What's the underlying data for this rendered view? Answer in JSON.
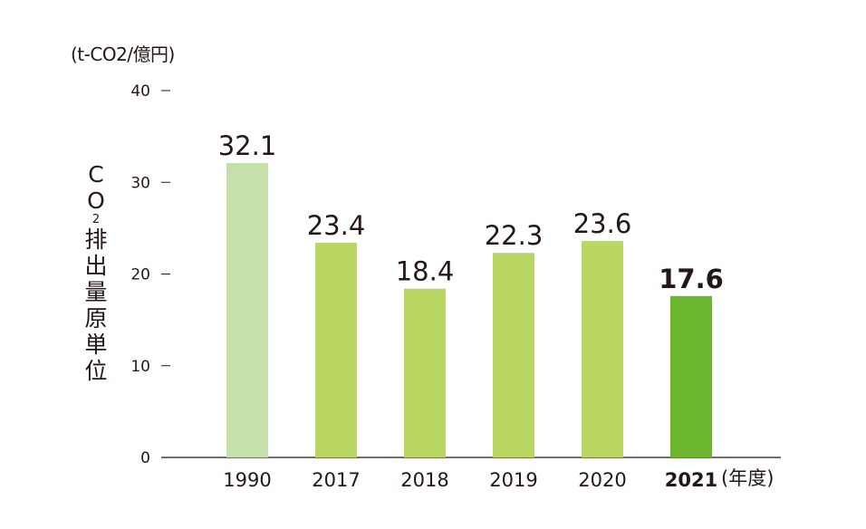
{
  "chart_data": {
    "type": "bar",
    "unit_label": "(t-CO2/億円)",
    "ylabel_parts": [
      "C",
      "O",
      "2",
      "排",
      "出",
      "量",
      "原",
      "単",
      "位"
    ],
    "xunit": "(年度)",
    "categories": [
      "1990",
      "2017",
      "2018",
      "2019",
      "2020",
      "2021"
    ],
    "values": [
      32.1,
      23.4,
      18.4,
      22.3,
      23.6,
      17.6
    ],
    "value_labels": [
      "32.1",
      "23.4",
      "18.4",
      "22.3",
      "23.6",
      "17.6"
    ],
    "highlight_category": "2021",
    "ylim": [
      0,
      40
    ],
    "yticks": [
      0,
      10,
      20,
      30,
      40
    ],
    "ytick_labels": [
      "0",
      "10",
      "20",
      "30",
      "40"
    ],
    "colors": {
      "baseline_year": "#c5e0ab",
      "regular": "#b8d661",
      "highlight": "#6db72f",
      "axis": "#231815"
    },
    "grid": false,
    "legend": "none"
  }
}
